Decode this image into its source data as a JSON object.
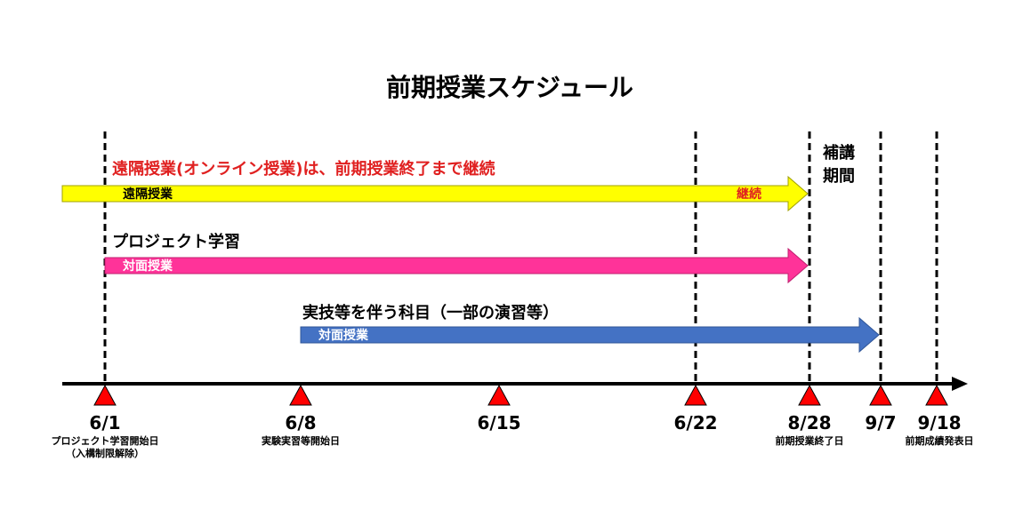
{
  "title": "前期授業スケジュール",
  "colors": {
    "arrow_yellow": "#ffff00",
    "arrow_pink": "#ff3399",
    "arrow_blue": "#4472c4",
    "marker_red": "#ff0000",
    "caption_red": "#e02020"
  },
  "supplementary_period": {
    "line1": "補講",
    "line2": "期間"
  },
  "tracks": [
    {
      "caption": "遠隔授業(オンライン授業)は、前期授業終了まで継続",
      "bar_label": "遠隔授業",
      "end_label": "継続"
    },
    {
      "caption": "プロジェクト学習",
      "bar_label": "対面授業"
    },
    {
      "caption": "実技等を伴う科目（一部の演習等）",
      "bar_label": "対面授業"
    }
  ],
  "milestones": [
    {
      "date": "6/1",
      "note1": "プロジェクト学習開始日",
      "note2": "（入構制限解除）"
    },
    {
      "date": "6/8",
      "note1": "実験実習等開始日",
      "note2": ""
    },
    {
      "date": "6/15",
      "note1": "",
      "note2": ""
    },
    {
      "date": "6/22",
      "note1": "",
      "note2": ""
    },
    {
      "date": "8/28",
      "note1": "前期授業終了日",
      "note2": ""
    },
    {
      "date": "9/7",
      "note1": "",
      "note2": ""
    },
    {
      "date": "9/18",
      "note1": "前期成績発表日",
      "note2": ""
    }
  ]
}
